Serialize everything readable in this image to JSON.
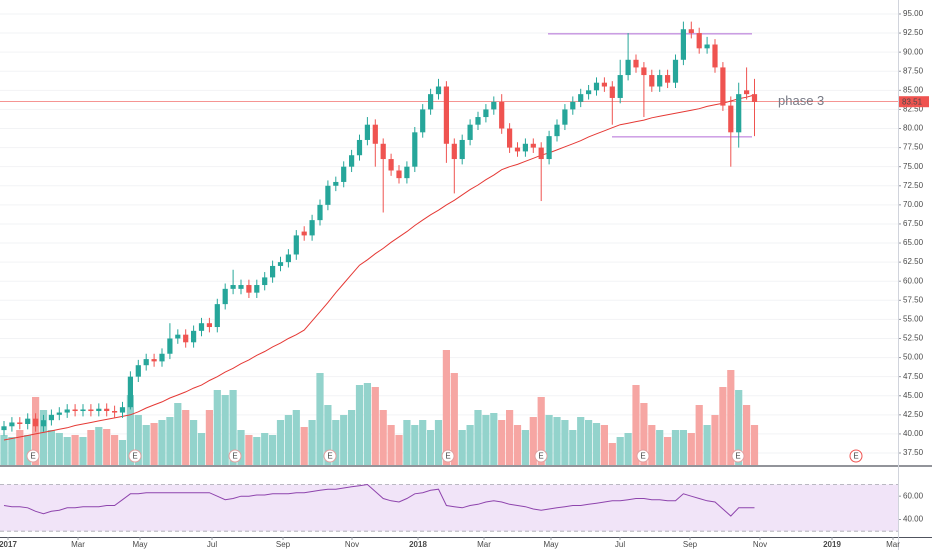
{
  "chart_data": {
    "type": "candlestick",
    "annotation": "phase 3",
    "last_price": 83.51,
    "earnings_label": "E",
    "range_levels": [
      92.4,
      78.9
    ],
    "up_color": "#26a69a",
    "down_color": "#ef5350",
    "volume_up_color": "#93d3cc",
    "volume_down_color": "#f6a6a3",
    "ma_color": "#e53935",
    "rsi_color": "#8e44ad",
    "level_color": "#b36bd6",
    "rsi_band_color": "#f1e4f8",
    "open": [
      40.5,
      41.0,
      41.5,
      41.3,
      42.0,
      41.0,
      41.8,
      42.5,
      42.8,
      43.2,
      43.0,
      43.2,
      43.0,
      43.3,
      43.0,
      42.8,
      43.5,
      47.5,
      49.0,
      49.8,
      49.5,
      50.5,
      52.5,
      53.0,
      52.0,
      53.5,
      54.5,
      54.0,
      57.0,
      59.0,
      59.0,
      59.5,
      58.5,
      59.5,
      60.5,
      62.0,
      62.5,
      63.5,
      66.5,
      66.0,
      68.0,
      70.0,
      72.5,
      73.0,
      75.0,
      76.5,
      78.5,
      80.5,
      78.0,
      76.0,
      74.5,
      73.5,
      75.0,
      79.5,
      82.5,
      84.5,
      85.5,
      78.0,
      76.0,
      78.5,
      80.5,
      81.5,
      82.5,
      83.5,
      80.0,
      77.5,
      77.0,
      78.0,
      77.5,
      76.0,
      79.0,
      80.5,
      82.5,
      83.5,
      84.5,
      85.0,
      86.0,
      85.5,
      84.0,
      87.0,
      89.0,
      88.0,
      87.0,
      85.5,
      87.0,
      86.0,
      89.0,
      93.0,
      92.5,
      90.5,
      91.0,
      88.0,
      83.0,
      79.5,
      85.0,
      84.5
    ],
    "high": [
      41.7,
      42.2,
      42.2,
      42.7,
      42.7,
      42.5,
      43.2,
      43.5,
      43.9,
      43.9,
      43.9,
      43.9,
      44.0,
      44.0,
      43.7,
      44.2,
      48.2,
      49.7,
      50.5,
      50.5,
      51.2,
      54.5,
      53.7,
      53.7,
      54.2,
      55.2,
      55.2,
      57.7,
      59.7,
      61.5,
      60.2,
      60.2,
      60.2,
      61.2,
      62.7,
      63.2,
      64.2,
      66.7,
      67.2,
      68.7,
      70.7,
      73.2,
      73.7,
      75.7,
      77.2,
      79.2,
      81.5,
      81.2,
      78.7,
      76.7,
      75.2,
      75.7,
      80.2,
      83.2,
      85.2,
      86.5,
      86.2,
      78.7,
      79.2,
      81.2,
      82.2,
      83.2,
      84.2,
      84.5,
      80.7,
      78.2,
      78.7,
      78.7,
      78.2,
      79.7,
      81.2,
      83.2,
      84.2,
      85.2,
      85.7,
      86.7,
      86.7,
      86.2,
      89.0,
      92.5,
      89.7,
      88.7,
      87.7,
      87.7,
      87.7,
      89.7,
      94.0,
      94.0,
      93.2,
      92.0,
      91.7,
      88.7,
      84.2,
      86.0,
      88.0,
      86.5
    ],
    "low": [
      39.8,
      40.3,
      40.6,
      40.6,
      40.3,
      40.3,
      41.1,
      41.8,
      42.1,
      42.3,
      42.3,
      42.3,
      42.3,
      42.3,
      42.1,
      42.1,
      43.2,
      46.8,
      48.3,
      48.8,
      48.8,
      49.8,
      51.8,
      51.3,
      51.3,
      52.8,
      53.3,
      53.3,
      56.3,
      58.3,
      58.3,
      57.8,
      57.8,
      58.8,
      59.8,
      61.3,
      61.8,
      62.8,
      65.3,
      65.3,
      67.3,
      69.3,
      71.8,
      72.3,
      74.3,
      75.8,
      77.8,
      75.0,
      69.0,
      73.8,
      72.8,
      72.8,
      74.3,
      78.8,
      81.8,
      83.8,
      75.5,
      71.5,
      75.3,
      77.8,
      79.8,
      80.8,
      81.8,
      79.3,
      76.8,
      76.3,
      76.3,
      76.8,
      70.5,
      75.3,
      78.3,
      79.8,
      81.8,
      82.8,
      83.8,
      84.3,
      84.8,
      80.5,
      83.3,
      86.3,
      87.3,
      81.5,
      84.8,
      84.8,
      85.3,
      85.3,
      88.3,
      91.8,
      89.8,
      89.8,
      87.3,
      82.3,
      75.0,
      77.5,
      83.8,
      79.0
    ],
    "close": [
      41.0,
      41.5,
      41.3,
      42.0,
      41.0,
      41.8,
      42.5,
      42.8,
      43.2,
      43.0,
      43.2,
      43.0,
      43.3,
      43.0,
      42.8,
      43.5,
      47.5,
      49.0,
      49.8,
      49.5,
      50.5,
      52.5,
      53.0,
      52.0,
      53.5,
      54.5,
      54.0,
      57.0,
      59.0,
      59.5,
      59.5,
      58.5,
      59.5,
      60.5,
      62.0,
      62.5,
      63.5,
      66.0,
      66.0,
      68.0,
      70.0,
      72.5,
      73.0,
      75.0,
      76.5,
      78.5,
      80.5,
      78.0,
      76.0,
      74.5,
      73.5,
      75.0,
      79.5,
      82.5,
      84.5,
      85.5,
      78.0,
      76.0,
      78.5,
      80.5,
      81.5,
      82.5,
      83.5,
      80.0,
      77.5,
      77.0,
      78.0,
      77.5,
      76.0,
      79.0,
      80.5,
      82.5,
      83.5,
      84.5,
      85.0,
      86.0,
      85.5,
      84.0,
      87.0,
      89.0,
      88.0,
      87.0,
      85.5,
      87.0,
      86.0,
      89.0,
      93.0,
      92.5,
      90.5,
      91.0,
      88.0,
      83.0,
      79.5,
      84.5,
      84.5,
      83.5
    ],
    "volume": [
      30,
      28,
      35,
      30,
      68,
      55,
      35,
      32,
      28,
      30,
      28,
      35,
      38,
      36,
      30,
      25,
      70,
      50,
      40,
      42,
      45,
      48,
      62,
      55,
      45,
      32,
      55,
      75,
      70,
      75,
      35,
      30,
      28,
      32,
      30,
      45,
      50,
      55,
      38,
      45,
      92,
      60,
      45,
      50,
      55,
      80,
      82,
      78,
      55,
      40,
      30,
      45,
      40,
      45,
      35,
      45,
      115,
      92,
      35,
      40,
      55,
      50,
      52,
      45,
      55,
      40,
      35,
      48,
      68,
      50,
      48,
      45,
      35,
      48,
      45,
      42,
      40,
      22,
      28,
      32,
      80,
      62,
      40,
      35,
      28,
      35,
      35,
      32,
      60,
      40,
      50,
      78,
      95,
      75,
      60,
      40
    ],
    "ma": [
      39.2,
      39.4,
      39.6,
      39.8,
      40.0,
      40.2,
      40.4,
      40.6,
      40.8,
      41.1,
      41.3,
      41.5,
      41.7,
      41.9,
      42.1,
      42.3,
      42.5,
      42.9,
      43.4,
      43.8,
      44.2,
      44.7,
      45.1,
      45.5,
      46.0,
      46.4,
      47.0,
      47.5,
      48.1,
      48.6,
      49.2,
      49.7,
      50.3,
      50.8,
      51.4,
      51.9,
      52.5,
      53.0,
      53.6,
      54.8,
      56.0,
      57.2,
      58.5,
      59.7,
      60.9,
      62.1,
      62.8,
      63.6,
      64.3,
      65.1,
      65.8,
      66.5,
      67.3,
      68.0,
      68.7,
      69.3,
      70.0,
      70.6,
      71.3,
      72.0,
      72.6,
      73.3,
      73.9,
      74.6,
      75.0,
      75.3,
      75.7,
      76.1,
      76.5,
      76.8,
      77.2,
      77.6,
      78.0,
      78.4,
      78.9,
      79.3,
      79.7,
      80.1,
      80.5,
      80.7,
      80.9,
      81.1,
      81.4,
      81.6,
      81.8,
      82.0,
      82.2,
      82.4,
      82.6,
      82.9,
      83.1,
      83.3,
      83.6,
      83.9,
      84.1,
      84.4
    ],
    "rsi": [
      52,
      51,
      51,
      50,
      47,
      45,
      47,
      48,
      50,
      50,
      51,
      51,
      51,
      52,
      52,
      57,
      62,
      62,
      63,
      63,
      63,
      63,
      63,
      63,
      63,
      63,
      63,
      60,
      57,
      58,
      60,
      60,
      61,
      61,
      62,
      62,
      62,
      63,
      63,
      64,
      65,
      66,
      66,
      67,
      68,
      69,
      70,
      64,
      58,
      56,
      55,
      58,
      62,
      63,
      65,
      66,
      52,
      51,
      50,
      52,
      53,
      55,
      56,
      55,
      53,
      52,
      51,
      49,
      48,
      49,
      50,
      51,
      52,
      52,
      53,
      54,
      55,
      56,
      56,
      57,
      58,
      58,
      57,
      57,
      56,
      56,
      62,
      60,
      58,
      56,
      55,
      49,
      43,
      50,
      50,
      50
    ],
    "ylim": [
      35.93,
      96.83
    ],
    "yticks": [
      {
        "value": 37.5,
        "label": "37.50"
      },
      {
        "value": 40,
        "label": "40.00"
      },
      {
        "value": 42.5,
        "label": "42.50"
      },
      {
        "value": 45,
        "label": "45.00"
      },
      {
        "value": 47.5,
        "label": "47.50"
      },
      {
        "value": 50,
        "label": "50.00"
      },
      {
        "value": 52.5,
        "label": "52.50"
      },
      {
        "value": 55,
        "label": "55.00"
      },
      {
        "value": 57.5,
        "label": "57.50"
      },
      {
        "value": 60,
        "label": "60.00"
      },
      {
        "value": 62.5,
        "label": "62.50"
      },
      {
        "value": 65,
        "label": "65.00"
      },
      {
        "value": 67.5,
        "label": "67.50"
      },
      {
        "value": 70,
        "label": "70.00"
      },
      {
        "value": 72.5,
        "label": "72.50"
      },
      {
        "value": 75,
        "label": "75.00"
      },
      {
        "value": 77.5,
        "label": "77.50"
      },
      {
        "value": 80,
        "label": "80.00"
      },
      {
        "value": 82.5,
        "label": "82.50"
      },
      {
        "value": 85,
        "label": "85.00"
      },
      {
        "value": 87.5,
        "label": "87.50"
      },
      {
        "value": 90,
        "label": "90.00"
      },
      {
        "value": 92.5,
        "label": "92.50"
      },
      {
        "value": 95,
        "label": "95.00"
      }
    ],
    "volume_lim": [
      0,
      140
    ],
    "rsi_ylim": [
      25,
      85
    ],
    "rsi_levels": [
      70,
      30
    ],
    "rsi_ticks": [
      {
        "value": 60,
        "label": "60.00"
      },
      {
        "value": 40,
        "label": "40.00"
      }
    ],
    "xticks": [
      "2017",
      "Mar",
      "May",
      "Jul",
      "Sep",
      "Nov",
      "2018",
      "Mar",
      "May",
      "Jul",
      "Sep",
      "Nov",
      "2019",
      "Mar"
    ]
  }
}
